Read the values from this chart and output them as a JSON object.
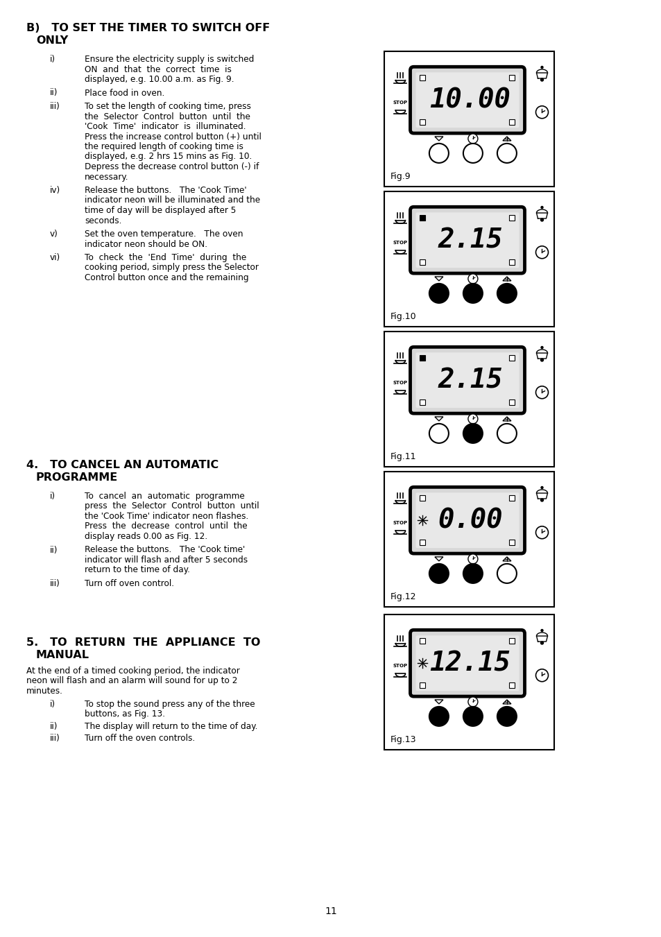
{
  "page_number": "11",
  "bg_color": "#ffffff",
  "figures": [
    {
      "label": "Fig.9",
      "display": "10.00",
      "left_top_filled": false,
      "left_bot_filled": false,
      "right_top_filled": false,
      "right_bot_filled": false,
      "btn1_filled": false,
      "btn2_filled": false,
      "btn3_filled": false,
      "left_icon_star": false
    },
    {
      "label": "Fig.10",
      "display": "2.15",
      "left_top_filled": true,
      "left_bot_filled": false,
      "right_top_filled": false,
      "right_bot_filled": false,
      "btn1_filled": true,
      "btn2_filled": true,
      "btn3_filled": true,
      "left_icon_star": false
    },
    {
      "label": "Fig.11",
      "display": "2.15",
      "left_top_filled": true,
      "left_bot_filled": false,
      "right_top_filled": false,
      "right_bot_filled": false,
      "btn1_filled": false,
      "btn2_filled": true,
      "btn3_filled": false,
      "left_icon_star": false
    },
    {
      "label": "Fig.12",
      "display": "0.00",
      "left_top_filled": false,
      "left_bot_filled": false,
      "right_top_filled": false,
      "right_bot_filled": false,
      "btn1_filled": true,
      "btn2_filled": true,
      "btn3_filled": false,
      "left_icon_star": true
    },
    {
      "label": "Fig.13",
      "display": "12.15",
      "left_top_filled": false,
      "left_bot_filled": false,
      "right_top_filled": false,
      "right_bot_filled": false,
      "btn1_filled": true,
      "btn2_filled": true,
      "btn3_filled": true,
      "left_icon_star": true
    }
  ],
  "section_b": {
    "title_line1": "B)   TO SET THE TIMER TO SWITCH OFF",
    "title_line2": "      ONLY",
    "items": [
      {
        "label": "i)",
        "lines": [
          "Ensure the electricity supply is switched",
          "ON  and  that  the  correct  time  is",
          "displayed, e.g. 10.00 a.m. as Fig. 9."
        ]
      },
      {
        "label": "ii)",
        "lines": [
          "Place food in oven."
        ]
      },
      {
        "label": "iii)",
        "lines": [
          "To set the length of cooking time, press",
          "the  Selector  Control  button  until  the",
          "'Cook  Time'  indicator  is  illuminated.",
          "Press the increase control button (+) until",
          "the required length of cooking time is",
          "displayed, e.g. 2 hrs 15 mins as Fig. 10.",
          "Depress the decrease control button (-) if",
          "necessary."
        ]
      },
      {
        "label": "iv)",
        "lines": [
          "Release the buttons.   The 'Cook Time'",
          "indicator neon will be illuminated and the",
          "time of day will be displayed after 5",
          "seconds."
        ]
      },
      {
        "label": "v)",
        "lines": [
          "Set the oven temperature.   The oven",
          "indicator neon should be ON."
        ]
      },
      {
        "label": "vi)",
        "lines": [
          "To  check  the  'End  Time'  during  the",
          "cooking period, simply press the Selector",
          "Control button once and the remaining"
        ]
      }
    ]
  },
  "section_4": {
    "title_line1": "4.   TO CANCEL AN AUTOMATIC",
    "title_line2": "      PROGRAMME",
    "items": [
      {
        "label": "i)",
        "lines": [
          "To  cancel  an  automatic  programme",
          "press  the  Selector  Control  button  until",
          "the 'Cook Time' indicator neon flashes.",
          "Press  the  decrease  control  until  the",
          "display reads 0.00 as Fig. 12."
        ]
      },
      {
        "label": "ii)",
        "lines": [
          "Release the buttons.   The 'Cook time'",
          "indicator will flash and after 5 seconds",
          "return to the time of day."
        ]
      },
      {
        "label": "iii)",
        "lines": [
          "Turn off oven control."
        ]
      }
    ]
  },
  "section_5": {
    "title_line1": "5.   TO  RETURN  THE  APPLIANCE  TO",
    "title_line2": "      MANUAL",
    "para": [
      "At the end of a timed cooking period, the indicator",
      "neon will flash and an alarm will sound for up to 2",
      "minutes."
    ],
    "items": [
      {
        "label": "i)",
        "lines": [
          "To stop the sound press any of the three",
          "buttons, as Fig. 13."
        ]
      },
      {
        "label": "ii)",
        "lines": [
          "The display will return to the time of day."
        ]
      },
      {
        "label": "iii)",
        "lines": [
          "Turn off the oven controls."
        ]
      }
    ]
  }
}
